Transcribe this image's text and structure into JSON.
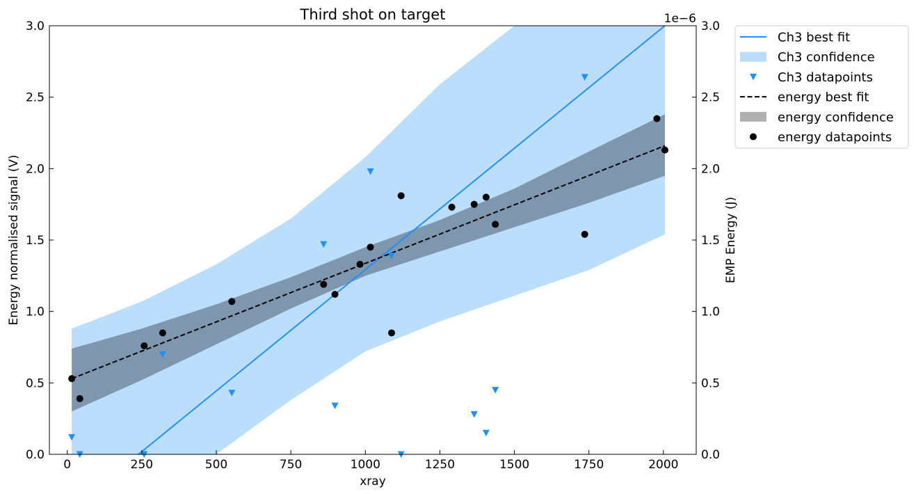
{
  "chart_data": {
    "type": "scatter",
    "title": "Third shot on target",
    "xlabel": "xray",
    "ylabel": "Energy normalised signal (V)",
    "y2label": "EMP Energy (J)",
    "y2_offset_text": "1e−6",
    "xlim": [
      -60,
      2110
    ],
    "ylim": [
      0,
      3.0
    ],
    "y2lim": [
      0,
      3e-06
    ],
    "xticks": [
      0,
      250,
      500,
      750,
      1000,
      1250,
      1500,
      1750,
      2000
    ],
    "xtick_labels": [
      "0",
      "250",
      "500",
      "750",
      "1000",
      "1250",
      "1500",
      "1750",
      "2000"
    ],
    "yticks": [
      0,
      0.5,
      1.0,
      1.5,
      2.0,
      2.5,
      3.0
    ],
    "ytick_labels": [
      "0.0",
      "0.5",
      "1.0",
      "1.5",
      "2.0",
      "2.5",
      "3.0"
    ],
    "y2tick_labels": [
      "0.0",
      "0.5",
      "1.0",
      "1.5",
      "2.0",
      "2.5",
      "3.0"
    ],
    "grid": false,
    "legend_position": "outside-upper-right",
    "colors": {
      "ch3": "#1e90ff",
      "ch3_band": "#bbdefd",
      "energy": "#000000",
      "energy_band": "#7f97ae",
      "energy_legend_patch": "#b0b0b0"
    },
    "series": [
      {
        "name": "Ch3 best fit",
        "kind": "line",
        "axis": "left",
        "x": [
          15,
          2005
        ],
        "y": [
          -0.38,
          3.0
        ]
      },
      {
        "name": "Ch3 confidence",
        "kind": "band",
        "axis": "left",
        "x": [
          15,
          250,
          500,
          750,
          1000,
          1250,
          1500,
          1750,
          2005
        ],
        "upper": [
          0.88,
          1.07,
          1.33,
          1.65,
          2.08,
          2.59,
          3.0,
          3.0,
          3.0
        ],
        "lower": [
          0.0,
          0.0,
          0.0,
          0.38,
          0.72,
          0.93,
          1.11,
          1.29,
          1.54
        ]
      },
      {
        "name": "Ch3 datapoints",
        "kind": "scatter",
        "marker": "triangle-down",
        "axis": "left",
        "x": [
          15,
          42,
          258,
          320,
          552,
          860,
          898,
          1017,
          1088,
          1120,
          1365,
          1405,
          1436,
          1736
        ],
        "y": [
          0.12,
          0.0,
          0.0,
          0.7,
          0.43,
          1.47,
          0.34,
          1.98,
          1.39,
          0.0,
          0.28,
          0.15,
          0.45,
          2.64
        ]
      },
      {
        "name": "energy best fit",
        "kind": "line",
        "style": "dashed",
        "axis": "right",
        "x": [
          15,
          2005
        ],
        "y": [
          5.3e-07,
          2.16e-06
        ]
      },
      {
        "name": "energy confidence",
        "kind": "band",
        "axis": "right",
        "x": [
          15,
          250,
          500,
          750,
          1000,
          1250,
          1500,
          1750,
          2005
        ],
        "upper": [
          7.4e-07,
          8.8e-07,
          1.05e-06,
          1.24e-06,
          1.45e-06,
          1.64e-06,
          1.86e-06,
          2.12e-06,
          2.38e-06
        ],
        "lower": [
          3e-07,
          5.2e-07,
          7.7e-07,
          1.02e-06,
          1.25e-06,
          1.42e-06,
          1.59e-06,
          1.76e-06,
          1.95e-06
        ]
      },
      {
        "name": "energy datapoints",
        "kind": "scatter",
        "marker": "circle",
        "axis": "right",
        "x": [
          15,
          42,
          258,
          320,
          552,
          860,
          898,
          982,
          1017,
          1088,
          1120,
          1290,
          1365,
          1405,
          1436,
          1736,
          1978,
          2005
        ],
        "y": [
          5.3e-07,
          3.9e-07,
          7.6e-07,
          8.5e-07,
          1.07e-06,
          1.19e-06,
          1.12e-06,
          1.33e-06,
          1.45e-06,
          8.5e-07,
          1.81e-06,
          1.73e-06,
          1.75e-06,
          1.8e-06,
          1.61e-06,
          1.54e-06,
          2.35e-06,
          2.13e-06
        ]
      }
    ]
  }
}
